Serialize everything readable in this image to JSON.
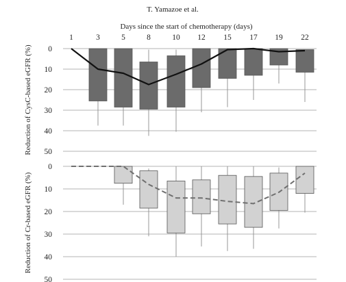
{
  "header": {
    "author": "T. Yamazoe et al."
  },
  "chart_data": [
    {
      "type": "box",
      "xlabel": "Days since the start of chemotherapy (days)",
      "ylabel": "Reduction of CysC-based eGFR (%)",
      "categories": [
        "1",
        "3",
        "5",
        "8",
        "10",
        "12",
        "15",
        "17",
        "19",
        "22"
      ],
      "ylim": [
        0,
        50
      ],
      "yticks": [
        0,
        10,
        20,
        30,
        40,
        50
      ],
      "y_inverted": true,
      "box_color": "#6b6b6b",
      "line_style": "solid",
      "line_color": "#111111",
      "boxes": [
        null,
        {
          "q1": 0,
          "q3": 25.5,
          "whisker_low": 0,
          "whisker_high": 37.5
        },
        {
          "q1": 0,
          "q3": 28.5,
          "whisker_low": 0,
          "whisker_high": 37.5
        },
        {
          "q1": 6.5,
          "q3": 29.5,
          "whisker_low": 0.5,
          "whisker_high": 42.5
        },
        {
          "q1": 3.5,
          "q3": 28.5,
          "whisker_low": 0.5,
          "whisker_high": 40.5
        },
        {
          "q1": 0,
          "q3": 19,
          "whisker_low": 0,
          "whisker_high": 31
        },
        {
          "q1": 0,
          "q3": 14.5,
          "whisker_low": 0,
          "whisker_high": 28.5
        },
        {
          "q1": 0,
          "q3": 13,
          "whisker_low": 0,
          "whisker_high": 25
        },
        {
          "q1": 0,
          "q3": 8,
          "whisker_low": 0,
          "whisker_high": 17
        },
        {
          "q1": 0.5,
          "q3": 11.5,
          "whisker_low": 0.5,
          "whisker_high": 26
        }
      ],
      "line_values": [
        0,
        10,
        12,
        17.5,
        12.5,
        7.5,
        0.5,
        0,
        1.5,
        1
      ]
    },
    {
      "type": "box",
      "xlabel": "",
      "ylabel": "Reduction of Cr-based eGFR (%)",
      "categories": [
        "1",
        "3",
        "5",
        "8",
        "10",
        "12",
        "15",
        "17",
        "19",
        "22"
      ],
      "ylim": [
        0,
        50
      ],
      "yticks": [
        0,
        10,
        20,
        30,
        40,
        50
      ],
      "y_inverted": true,
      "box_color": "#d2d2d2",
      "line_style": "dashed",
      "line_color": "#6f6f6f",
      "boxes": [
        null,
        null,
        {
          "q1": 0,
          "q3": 7.5,
          "whisker_low": 0,
          "whisker_high": 17
        },
        {
          "q1": 2,
          "q3": 18.5,
          "whisker_low": 1,
          "whisker_high": 31
        },
        {
          "q1": 6.5,
          "q3": 29.5,
          "whisker_low": 0,
          "whisker_high": 40
        },
        {
          "q1": 6,
          "q3": 21,
          "whisker_low": 0,
          "whisker_high": 35.5
        },
        {
          "q1": 4,
          "q3": 25.5,
          "whisker_low": 0,
          "whisker_high": 37.5
        },
        {
          "q1": 4.5,
          "q3": 27,
          "whisker_low": 0,
          "whisker_high": 36.5
        },
        {
          "q1": 3,
          "q3": 19.5,
          "whisker_low": 0.5,
          "whisker_high": 27.5
        },
        {
          "q1": 0,
          "q3": 12,
          "whisker_low": 0,
          "whisker_high": 20.5
        }
      ],
      "line_values": [
        0,
        0,
        0,
        8,
        14,
        14,
        15.5,
        16.5,
        11.5,
        3
      ]
    }
  ]
}
